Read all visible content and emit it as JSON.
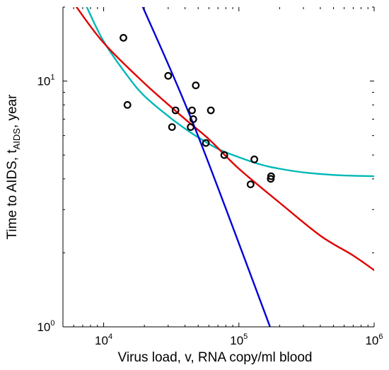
{
  "chart_data": {
    "type": "scatter",
    "title": "",
    "xlabel": "Virus load, v, RNA copy/ml blood",
    "ylabel": {
      "prefix": "Time to AIDS, t",
      "subscript": "AIDS",
      "suffix": ", year"
    },
    "x_scale": "log",
    "y_scale": "log",
    "xlim": [
      5000,
      1000000
    ],
    "ylim": [
      1,
      20
    ],
    "x_ticks": [
      {
        "value": 10000,
        "base": "10",
        "exp": "4"
      },
      {
        "value": 100000,
        "base": "10",
        "exp": "5"
      },
      {
        "value": 1000000,
        "base": "10",
        "exp": "6"
      }
    ],
    "y_ticks": [
      {
        "value": 1,
        "base": "10",
        "exp": "0"
      },
      {
        "value": 10,
        "base": "10",
        "exp": "1"
      }
    ],
    "grid": false,
    "scatter_points": [
      {
        "x": 14000,
        "y": 15.0
      },
      {
        "x": 15000,
        "y": 8.0
      },
      {
        "x": 30000,
        "y": 10.5
      },
      {
        "x": 32000,
        "y": 6.5
      },
      {
        "x": 34000,
        "y": 7.6
      },
      {
        "x": 44000,
        "y": 6.5
      },
      {
        "x": 45000,
        "y": 7.6
      },
      {
        "x": 46000,
        "y": 7.0
      },
      {
        "x": 48000,
        "y": 9.6
      },
      {
        "x": 57000,
        "y": 5.6
      },
      {
        "x": 62000,
        "y": 7.6
      },
      {
        "x": 78000,
        "y": 5.0
      },
      {
        "x": 122000,
        "y": 3.8
      },
      {
        "x": 130000,
        "y": 4.8
      },
      {
        "x": 172000,
        "y": 4.0
      },
      {
        "x": 173000,
        "y": 4.1
      }
    ],
    "series": [
      {
        "color": "#00b8b8",
        "points": [
          [
            7500,
            20
          ],
          [
            10000,
            14.5
          ],
          [
            15000,
            10.5
          ],
          [
            20000,
            8.7
          ],
          [
            30000,
            7.2
          ],
          [
            40000,
            6.4
          ],
          [
            50000,
            5.9
          ],
          [
            70000,
            5.3
          ],
          [
            100000,
            4.9
          ],
          [
            150000,
            4.55
          ],
          [
            200000,
            4.4
          ],
          [
            300000,
            4.25
          ],
          [
            500000,
            4.15
          ],
          [
            700000,
            4.12
          ],
          [
            1000000,
            4.1
          ]
        ]
      },
      {
        "color": "#e00000",
        "points": [
          [
            6300,
            20
          ],
          [
            10000,
            14.3
          ],
          [
            20000,
            9.8
          ],
          [
            40000,
            7.0
          ],
          [
            60000,
            5.8
          ],
          [
            100000,
            4.4
          ],
          [
            200000,
            3.2
          ],
          [
            400000,
            2.35
          ],
          [
            700000,
            1.95
          ],
          [
            1000000,
            1.7
          ]
        ]
      },
      {
        "color": "#0000d8",
        "points": [
          [
            19500,
            20
          ],
          [
            47000,
            6.5
          ],
          [
            170000,
            1.0
          ]
        ]
      }
    ],
    "marker_color": "#000000"
  }
}
